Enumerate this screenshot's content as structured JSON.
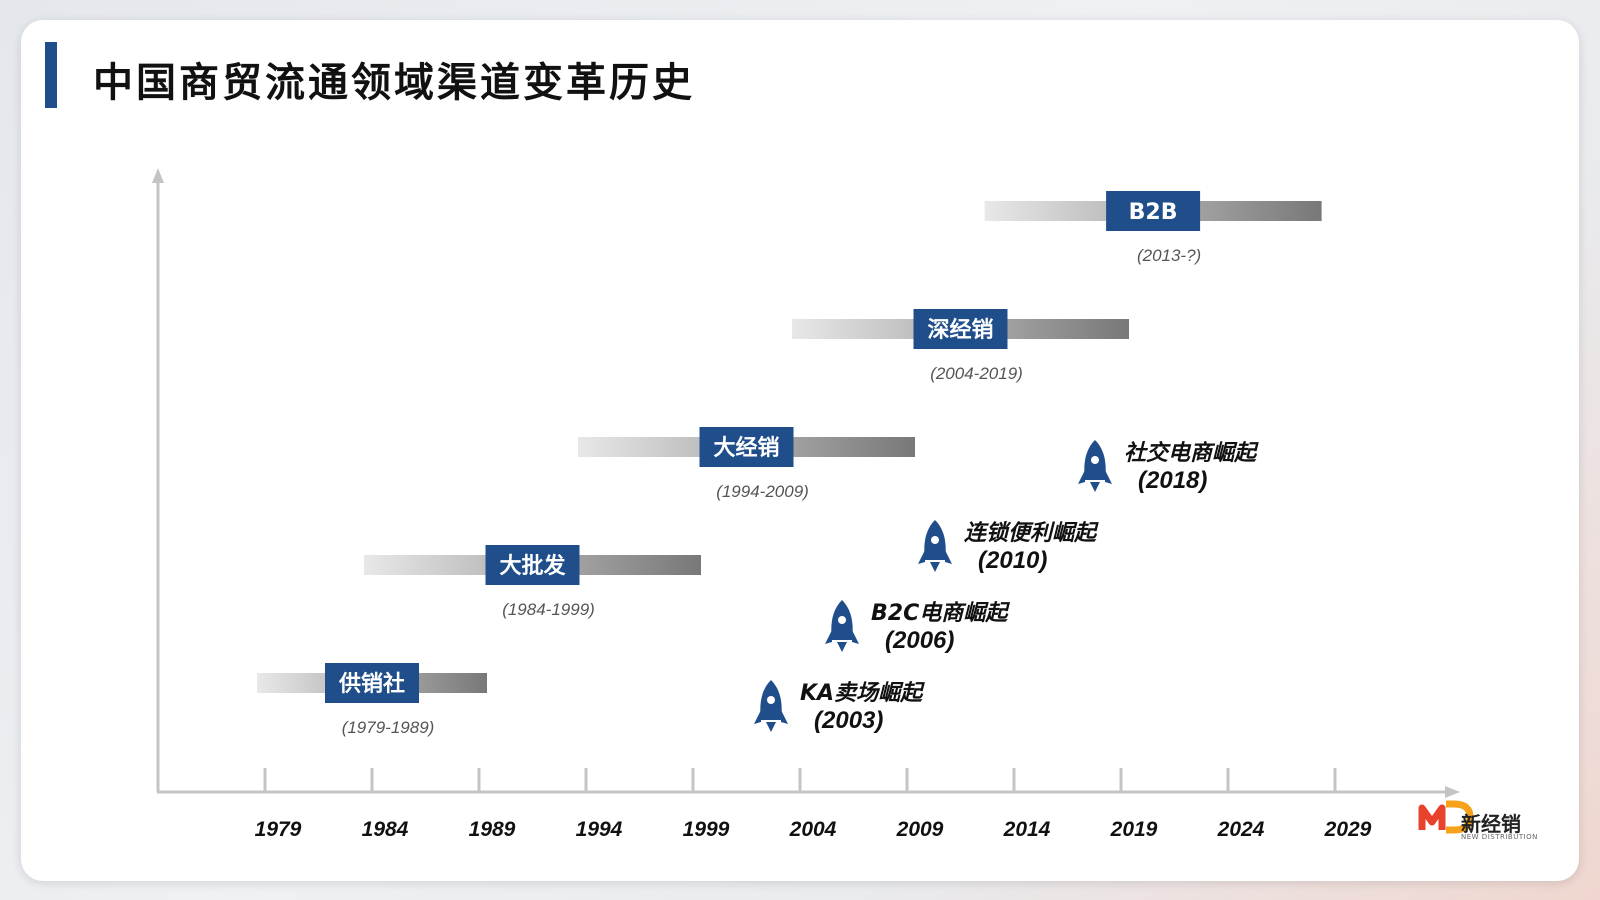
{
  "title": "中国商贸流通领域渠道变革历史",
  "colors": {
    "label_bg": "#1f4e8a",
    "label_text": "#ffffff",
    "axis": "#c4c4c4",
    "rocket": "#1f4e8a",
    "bar_light": "#e6e6e6",
    "bar_dark": "#7a7a7a",
    "logo_red": "#e8412c",
    "logo_orange": "#f6a21a"
  },
  "chart_data": {
    "type": "timeline",
    "x_ticks": [
      1979,
      1984,
      1989,
      1994,
      1999,
      2004,
      2009,
      2014,
      2019,
      2024,
      2029
    ],
    "x_tick_labels": [
      "1979",
      "1984",
      "1989",
      "1994",
      "1999",
      "2004",
      "2009",
      "2014",
      "2019",
      "2024",
      "2029"
    ],
    "eras": [
      {
        "label": "供销社",
        "period": "(1979-1989)",
        "start": 1979,
        "end": 1989
      },
      {
        "label": "大批发",
        "period": "(1984-1999)",
        "start": 1984,
        "end": 1999
      },
      {
        "label": "大经销",
        "period": "(1994-2009)",
        "start": 1994,
        "end": 2009
      },
      {
        "label": "深经销",
        "period": "(2004-2019)",
        "start": 2004,
        "end": 2019
      },
      {
        "label": "B2B",
        "period": "(2013-?)",
        "start": 2013,
        "end": 2028
      }
    ],
    "events": [
      {
        "name": "KA卖场崛起",
        "year_label": "(2003)",
        "year": 2003
      },
      {
        "name": "B2C电商崛起",
        "year_label": "(2006)",
        "year": 2006
      },
      {
        "name": "连锁便利崛起",
        "year_label": "(2010)",
        "year": 2010
      },
      {
        "name": "社交电商崛起",
        "year_label": "(2018)",
        "year": 2018
      }
    ]
  },
  "logo": {
    "name": "新经销",
    "subtitle": "NEW DISTRIBUTION"
  }
}
